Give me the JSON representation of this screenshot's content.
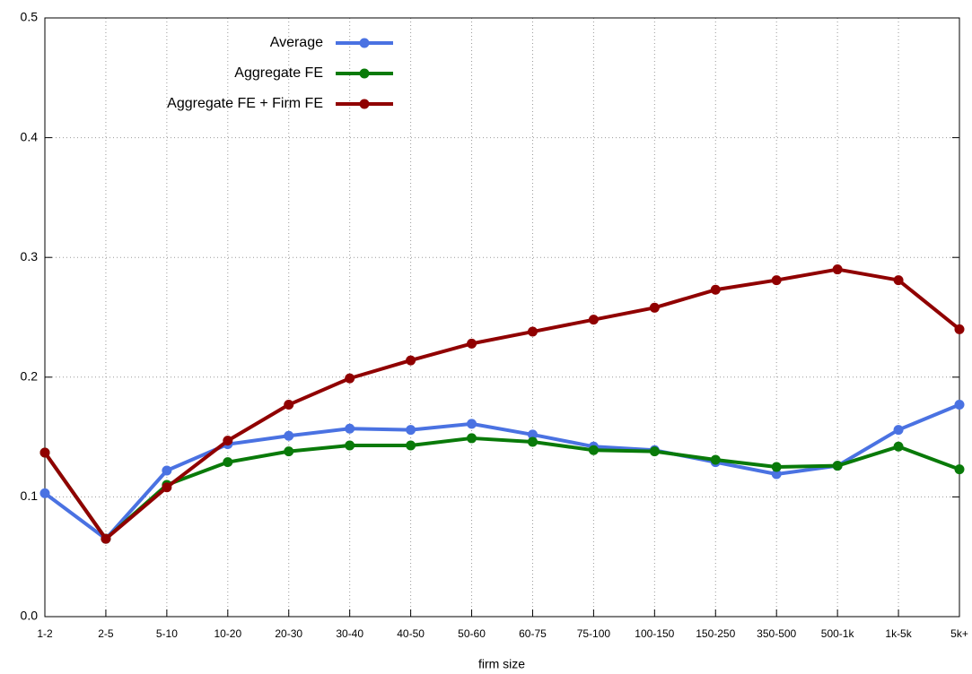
{
  "chart_data": {
    "type": "line",
    "x_label": "firm size",
    "categories": [
      "1-2",
      "2-5",
      "5-10",
      "10-20",
      "20-30",
      "30-40",
      "40-50",
      "50-60",
      "60-75",
      "75-100",
      "100-150",
      "150-250",
      "350-500",
      "500-1k",
      "1k-5k",
      "5k+"
    ],
    "series": [
      {
        "name": "Average",
        "color": "#4a72e2",
        "values": [
          0.103,
          0.065,
          0.122,
          0.144,
          0.151,
          0.157,
          0.156,
          0.161,
          0.152,
          0.142,
          0.139,
          0.129,
          0.119,
          0.126,
          0.156,
          0.177
        ]
      },
      {
        "name": "Aggregate FE",
        "color": "#097a09",
        "values": [
          0.137,
          0.065,
          0.11,
          0.129,
          0.138,
          0.143,
          0.143,
          0.149,
          0.146,
          0.139,
          0.138,
          0.131,
          0.125,
          0.126,
          0.142,
          0.123
        ]
      },
      {
        "name": "Aggregate FE + Firm FE",
        "color": "#900000",
        "values": [
          0.137,
          0.065,
          0.108,
          0.147,
          0.177,
          0.199,
          0.214,
          0.228,
          0.238,
          0.248,
          0.258,
          0.273,
          0.281,
          0.29,
          0.281,
          0.24
        ]
      }
    ],
    "ylim": [
      0,
      0.5
    ],
    "yticks": [
      {
        "value": 0,
        "label": "0.0"
      },
      0.1,
      0.2,
      0.3,
      0.4,
      0.5
    ],
    "grid": true,
    "legend": "top-left"
  }
}
